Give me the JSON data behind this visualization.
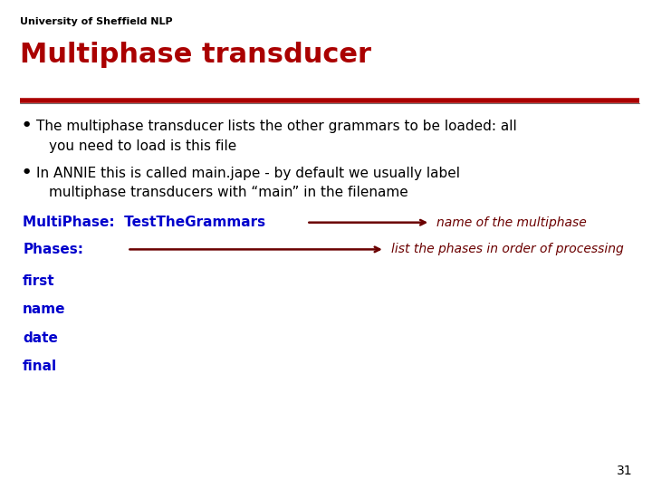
{
  "background_color": "#ffffff",
  "header_text": "University of Sheffield NLP",
  "header_color": "#000000",
  "header_fontsize": 8,
  "title_text": "Multiphase transducer",
  "title_color": "#aa0000",
  "title_fontsize": 22,
  "divider_color": "#aa0000",
  "bullet_color": "#000000",
  "bullet_fontsize": 11,
  "bullet1_line1": "The multiphase transducer lists the other grammars to be loaded: all",
  "bullet1_line2": "you need to load is this file",
  "bullet2_line1": "In ANNIE this is called main.jape - by default we usually label",
  "bullet2_line2": "multiphase transducers with “main” in the filename",
  "code_color": "#0000cc",
  "code_fontsize": 11,
  "multiphase_line": "MultiPhase:  TestTheGrammars",
  "phases_line": "Phases:",
  "annotation_color": "#6b0000",
  "annotation_fontsize": 10,
  "annotation1_text": "name of the multiphase",
  "annotation2_text": "list the phases in order of processing",
  "phase_items": [
    "first",
    "name",
    "date",
    "final"
  ],
  "page_number": "31",
  "page_number_fontsize": 10
}
